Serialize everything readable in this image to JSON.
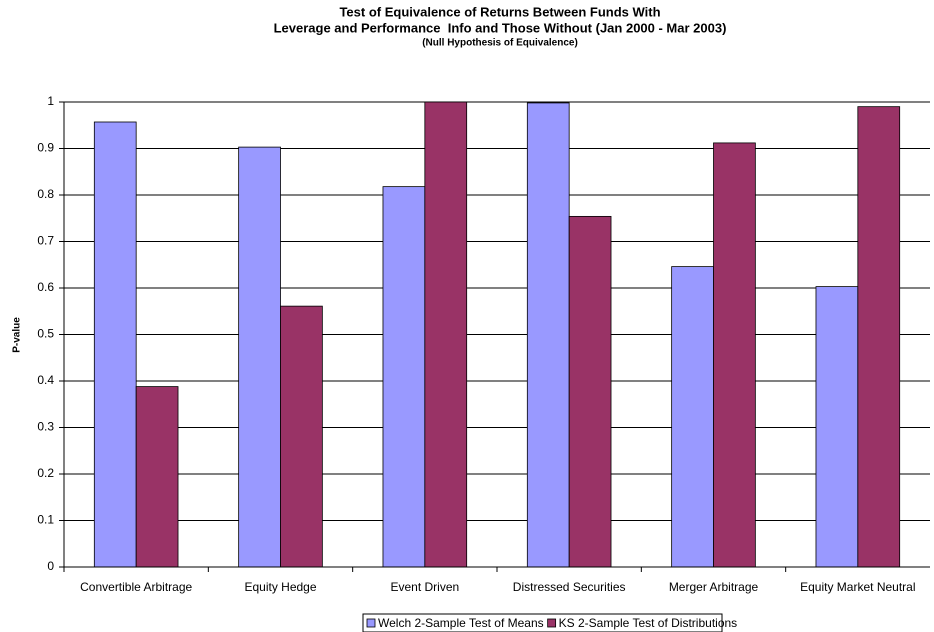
{
  "chart_data": {
    "type": "bar",
    "title": [
      "Test of Equivalence of Returns Between Funds With",
      "Leverage and Performance  Info and Those Without (Jan 2000 - Mar 2003)"
    ],
    "subtitle": "(Null Hypothesis of Equivalence)",
    "y_label": "P-value",
    "categories": [
      "Convertible Arbitrage",
      "Equity Hedge",
      "Event Driven",
      "Distressed Securities",
      "Merger Arbitrage",
      "Equity Market Neutral"
    ],
    "series": [
      {
        "name": "Welch 2-Sample Test of Means",
        "color": "#9999ff",
        "values": [
          0.957,
          0.903,
          0.818,
          0.998,
          0.646,
          0.603
        ]
      },
      {
        "name": "KS 2-Sample Test of Distributions",
        "color": "#993366",
        "values": [
          0.388,
          0.561,
          1.0,
          0.754,
          0.912,
          0.99
        ]
      }
    ],
    "ylim": [
      0,
      1
    ],
    "yticks": [
      0,
      0.1,
      0.2,
      0.3,
      0.4,
      0.5,
      0.6,
      0.7,
      0.8,
      0.9,
      1
    ],
    "grid": true,
    "legend": "bottom"
  }
}
